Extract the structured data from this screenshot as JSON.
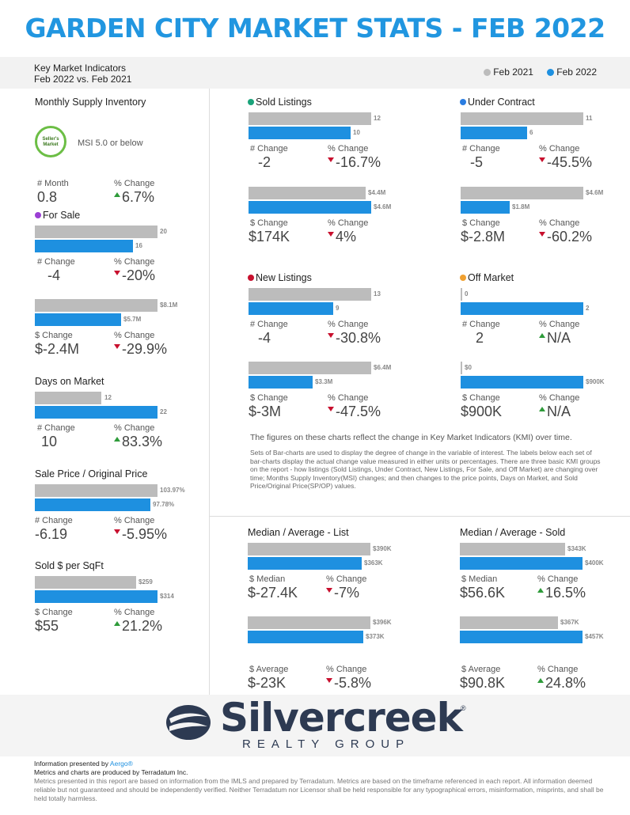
{
  "header": {
    "title": "GARDEN CITY MARKET STATS - FEB 2022",
    "kmi": "Key Market Indicators",
    "compare": "Feb 2022 vs. Feb 2021"
  },
  "legend": {
    "a": "Feb 2021",
    "b": "Feb 2022",
    "color_a": "#bcbcbc",
    "color_b": "#1e90e0"
  },
  "left": {
    "msi": {
      "title": "Monthly Supply Inventory",
      "badge": "Seller's Market",
      "note": "MSI 5.0 or below",
      "l1": "# Month",
      "v1": "0.8",
      "l2": "% Change",
      "v2": "6.7%"
    },
    "for_sale": {
      "title": "For Sale",
      "a": "20",
      "b": "16",
      "l1": "# Change",
      "v1": "-4",
      "l2": "% Change",
      "v2": "-20%",
      "a2": "$8.1M",
      "b2": "$5.7M",
      "l3": "$ Change",
      "v3": "$-2.4M",
      "l4": "% Change",
      "v4": "-29.9%"
    },
    "dom": {
      "title": "Days on Market",
      "a": "12",
      "b": "22",
      "l1": "# Change",
      "v1": "10",
      "l2": "% Change",
      "v2": "83.3%"
    },
    "sp": {
      "title": "Sale Price / Original Price",
      "a": "103.97%",
      "b": "97.78%",
      "l1": "# Change",
      "v1": "-6.19",
      "l2": "% Change",
      "v2": "-5.95%"
    },
    "sqft": {
      "title": "Sold $ per SqFt",
      "a": "$259",
      "b": "$314",
      "l1": "$ Change",
      "v1": "$55",
      "l2": "% Change",
      "v2": "21.2%"
    }
  },
  "panels": {
    "sold": {
      "title": "Sold Listings",
      "color": "#1aa37a",
      "a": "12",
      "b": "10",
      "l1": "# Change",
      "v1": "-2",
      "l2": "% Change",
      "v2": "-16.7%",
      "a2": "$4.4M",
      "b2": "$4.6M",
      "l3": "$ Change",
      "v3": "$174K",
      "l4": "% Change",
      "v4": "4%"
    },
    "uc": {
      "title": "Under Contract",
      "color": "#2a7de1",
      "a": "11",
      "b": "6",
      "l1": "# Change",
      "v1": "-5",
      "l2": "% Change",
      "v2": "-45.5%",
      "a2": "$4.6M",
      "b2": "$1.8M",
      "l3": "$ Change",
      "v3": "$-2.8M",
      "l4": "% Change",
      "v4": "-60.2%"
    },
    "nl": {
      "title": "New Listings",
      "color": "#c8102e",
      "a": "13",
      "b": "9",
      "l1": "# Change",
      "v1": "-4",
      "l2": "% Change",
      "v2": "-30.8%",
      "a2": "$6.4M",
      "b2": "$3.3M",
      "l3": "$ Change",
      "v3": "$-3M",
      "l4": "% Change",
      "v4": "-47.5%"
    },
    "om": {
      "title": "Off Market",
      "color": "#f0a030",
      "a": "0",
      "b": "2",
      "l1": "# Change",
      "v1": "2",
      "l2": "% Change",
      "v2": "N/A",
      "a2": "$0",
      "b2": "$900K",
      "l3": "$ Change",
      "v3": "$900K",
      "l4": "% Change",
      "v4": "N/A"
    }
  },
  "notes": {
    "main": "The figures on these charts reflect the change in Key Market Indicators (KMI) over time.",
    "detail": "Sets of Bar-charts are used to display the degree of change in the variable of interest. The labels below each set of bar-charts display the actual change value measured in either units or percentages. There are three basic KMI groups on the report - how listings (Sold Listings, Under Contract, New Listings, For Sale, and Off Market) are changing over time; Months Supply Inventory(MSI) changes; and then changes to the price points, Days on Market, and Sold Price/Original Price(SP/OP) values."
  },
  "median": {
    "list": {
      "title": "Median / Average - List",
      "a": "$390K",
      "b": "$363K",
      "l1": "$ Median",
      "v1": "$-27.4K",
      "l2": "% Change",
      "v2": "-7%",
      "a2": "$396K",
      "b2": "$373K",
      "l3": "$ Average",
      "v3": "$-23K",
      "l4": "% Change",
      "v4": "-5.8%"
    },
    "sold": {
      "title": "Median / Average - Sold",
      "a": "$343K",
      "b": "$400K",
      "l1": "$ Median",
      "v1": "$56.6K",
      "l2": "% Change",
      "v2": "16.5%",
      "a2": "$367K",
      "b2": "$457K",
      "l3": "$ Average",
      "v3": "$90.8K",
      "l4": "% Change",
      "v4": "24.8%"
    }
  },
  "logo": {
    "word": "Silvercreek",
    "sub": "REALTY GROUP",
    "reg": "®"
  },
  "footer": {
    "presented": "Information presented by ",
    "brand": "Aergo®",
    "produced": "Metrics and charts are produced by Terradatum Inc.",
    "disclaimer": "Metrics presented in this report are based on information from the IMLS and prepared by Terradatum. Metrics are based on the timeframe referenced in each report. All information deemed reliable but not guaranteed and should be independently verified. Neither Terradatum nor Licensor shall be held responsible for any typographical errors, misinformation, misprints, and shall be held totally harmless."
  }
}
